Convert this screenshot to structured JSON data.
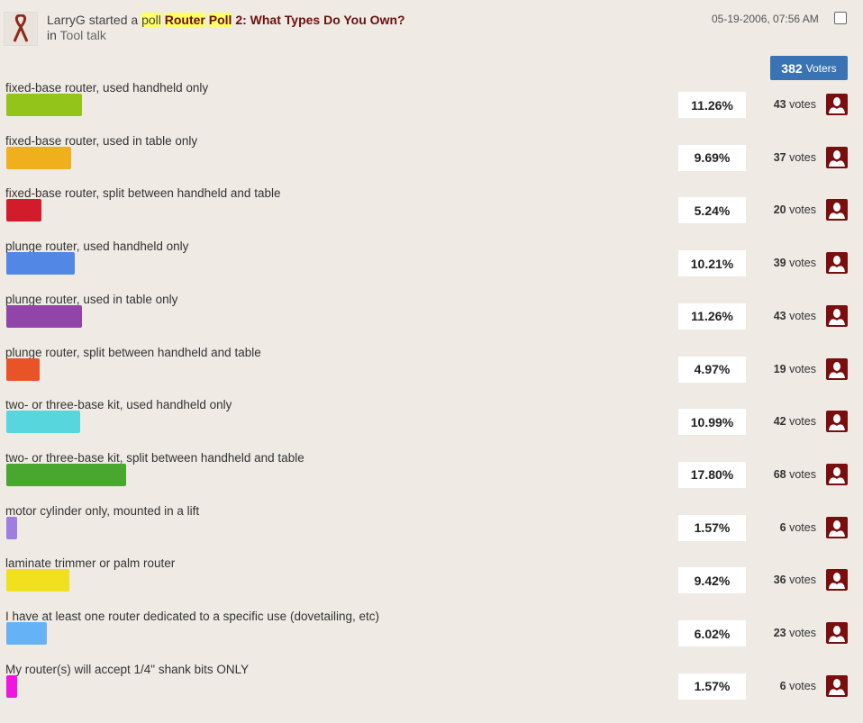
{
  "header": {
    "user": "LarryG",
    "action_pre": "started a",
    "action_poll": "poll",
    "title_word1": "Router",
    "title_word2": "Poll",
    "title_rest": "2: What Types Do You Own?",
    "in_label": "in",
    "forum": "Tool talk",
    "date": "05-19-2006, 07:56 AM"
  },
  "voters": {
    "count": "382",
    "label": "Voters"
  },
  "options": [
    {
      "label": "fixed-base router, used handheld only",
      "percent": "11.26%",
      "value": 11.26,
      "votes": "43",
      "color": "#93c41a"
    },
    {
      "label": "fixed-base router, used in table only",
      "percent": "9.69%",
      "value": 9.69,
      "votes": "37",
      "color": "#f0b01e"
    },
    {
      "label": "fixed-base router, split between handheld and table",
      "percent": "5.24%",
      "value": 5.24,
      "votes": "20",
      "color": "#d31c2b"
    },
    {
      "label": "plunge router, used handheld only",
      "percent": "10.21%",
      "value": 10.21,
      "votes": "39",
      "color": "#5287e6"
    },
    {
      "label": "plunge router, used in table only",
      "percent": "11.26%",
      "value": 11.26,
      "votes": "43",
      "color": "#9145a8"
    },
    {
      "label": "plunge router, split between handheld and table",
      "percent": "4.97%",
      "value": 4.97,
      "votes": "19",
      "color": "#e85428"
    },
    {
      "label": "two- or three-base kit, used handheld only",
      "percent": "10.99%",
      "value": 10.99,
      "votes": "42",
      "color": "#57d6de"
    },
    {
      "label": "two- or three-base kit, split between handheld and table",
      "percent": "17.80%",
      "value": 17.8,
      "votes": "68",
      "color": "#49a62e"
    },
    {
      "label": "motor cylinder only, mounted in a lift",
      "percent": "1.57%",
      "value": 1.57,
      "votes": "6",
      "color": "#a07de0"
    },
    {
      "label": "laminate trimmer or palm router",
      "percent": "9.42%",
      "value": 9.42,
      "votes": "36",
      "color": "#f0e01e"
    },
    {
      "label": "I have at least one router dedicated to a specific use (dovetailing, etc)",
      "percent": "6.02%",
      "value": 6.02,
      "votes": "23",
      "color": "#66b2f7"
    },
    {
      "label": "My router(s) will accept 1/4\" shank bits ONLY",
      "percent": "1.57%",
      "value": 1.57,
      "votes": "6",
      "color": "#f016e0"
    }
  ],
  "votes_label": "votes"
}
